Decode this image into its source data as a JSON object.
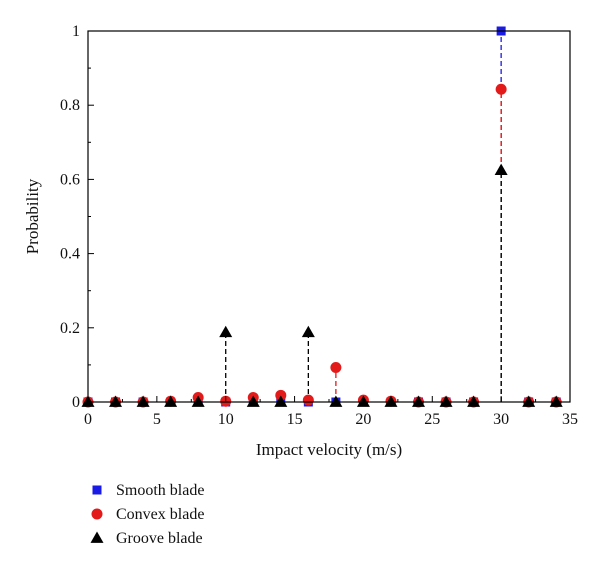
{
  "chart_data": {
    "type": "scatter",
    "xlabel": "Impact velocity (m/s)",
    "ylabel": "Probability",
    "xlim": [
      0,
      35
    ],
    "ylim": [
      0,
      1
    ],
    "x_ticks": [
      0,
      5,
      10,
      15,
      20,
      25,
      30,
      35
    ],
    "y_ticks": [
      0,
      0.2,
      0.4,
      0.6,
      0.8,
      1
    ],
    "x_tick_labels": [
      "0",
      "5",
      "10",
      "15",
      "20",
      "25",
      "30",
      "35"
    ],
    "y_tick_labels": [
      "0",
      "0.2",
      "0.4",
      "0.6",
      "0.8",
      "1"
    ],
    "grid": false,
    "legend_position": "bottom-left-below",
    "series": [
      {
        "name": "Smooth blade",
        "marker": "square",
        "color": "#1a1ae6",
        "x": [
          0,
          2,
          4,
          6,
          8,
          10,
          12,
          14,
          16,
          18,
          20,
          22,
          24,
          26,
          28,
          30,
          32,
          34
        ],
        "y": [
          0,
          0,
          0,
          0,
          0,
          0,
          0,
          0,
          0,
          0,
          0,
          0,
          0,
          0,
          0,
          1.0,
          0,
          0
        ]
      },
      {
        "name": "Convex blade",
        "marker": "circle",
        "color": "#e31a1a",
        "x": [
          0,
          2,
          4,
          6,
          8,
          10,
          12,
          14,
          16,
          18,
          20,
          22,
          24,
          26,
          28,
          30,
          32,
          34
        ],
        "y": [
          0,
          0,
          0,
          0.002,
          0.012,
          0.002,
          0.012,
          0.018,
          0.005,
          0.093,
          0.005,
          0.002,
          0,
          0,
          0,
          0.843,
          0,
          0
        ]
      },
      {
        "name": "Groove blade",
        "marker": "triangle",
        "color": "#000000",
        "x": [
          0,
          2,
          4,
          6,
          8,
          10,
          12,
          14,
          16,
          18,
          20,
          22,
          24,
          26,
          28,
          30,
          32,
          34
        ],
        "y": [
          0,
          0,
          0,
          0,
          0,
          0.188,
          0,
          0,
          0.188,
          0,
          0,
          0,
          0,
          0,
          0,
          0.625,
          0,
          0
        ]
      }
    ]
  }
}
